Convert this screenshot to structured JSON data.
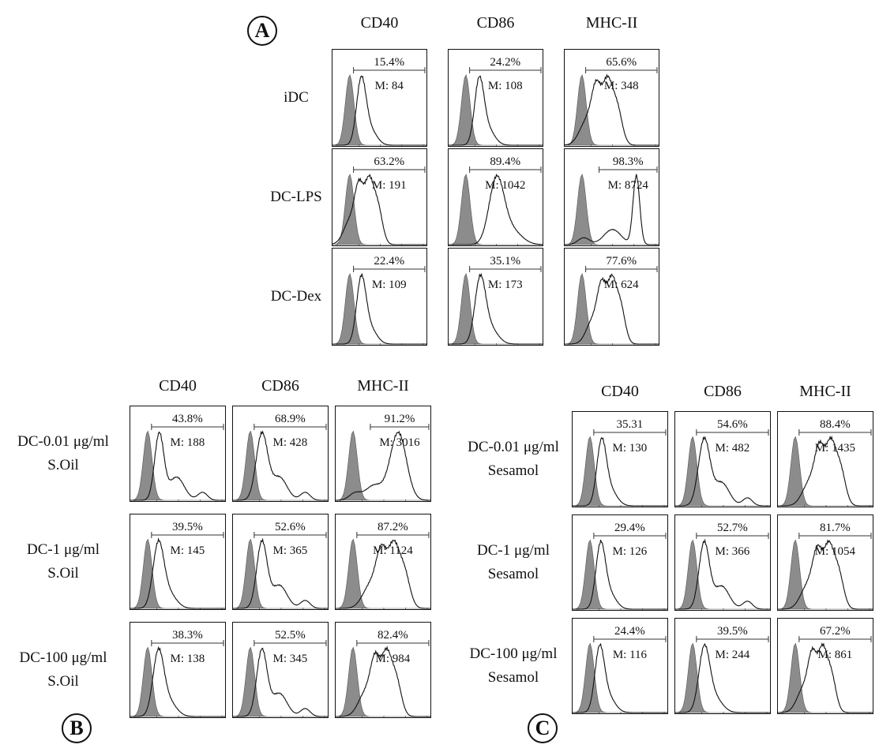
{
  "chart_data": [
    {
      "type": "histogram",
      "panel": "A",
      "columns": [
        "CD40",
        "CD86",
        "MHC-II"
      ],
      "rows": [
        {
          "label": [
            "iDC"
          ],
          "cells": [
            {
              "percent": "15.4%",
              "mfi": "M: 84",
              "peak": 0.3,
              "width": 0.07,
              "shape": "single"
            },
            {
              "percent": "24.2%",
              "mfi": "M: 108",
              "peak": 0.32,
              "width": 0.07,
              "shape": "single"
            },
            {
              "percent": "65.6%",
              "mfi": "M: 348",
              "peak": 0.4,
              "width": 0.11,
              "shape": "multi"
            }
          ]
        },
        {
          "label": [
            "DC-LPS"
          ],
          "cells": [
            {
              "percent": "63.2%",
              "mfi": "M: 191",
              "peak": 0.34,
              "width": 0.1,
              "shape": "multi"
            },
            {
              "percent": "89.4%",
              "mfi": "M: 1042",
              "peak": 0.5,
              "width": 0.11,
              "shape": "single"
            },
            {
              "percent": "98.3%",
              "mfi": "M: 8724",
              "peak": 0.75,
              "width": 0.05,
              "shape": "shoulder"
            }
          ]
        },
        {
          "label": [
            "DC-Dex"
          ],
          "cells": [
            {
              "percent": "22.4%",
              "mfi": "M: 109",
              "peak": 0.3,
              "width": 0.07,
              "shape": "single"
            },
            {
              "percent": "35.1%",
              "mfi": "M: 173",
              "peak": 0.33,
              "width": 0.08,
              "shape": "single"
            },
            {
              "percent": "77.6%",
              "mfi": "M: 624",
              "peak": 0.45,
              "width": 0.1,
              "shape": "multi"
            }
          ]
        }
      ]
    },
    {
      "type": "histogram",
      "panel": "B",
      "columns": [
        "CD40",
        "CD86",
        "MHC-II"
      ],
      "rows": [
        {
          "label": [
            "DC-0.01 μg/ml",
            "S.Oil"
          ],
          "cells": [
            {
              "percent": "43.8%",
              "mfi": "M: 188",
              "peak": 0.3,
              "width": 0.08,
              "shape": "tail"
            },
            {
              "percent": "68.9%",
              "mfi": "M: 428",
              "peak": 0.3,
              "width": 0.1,
              "shape": "tail"
            },
            {
              "percent": "91.2%",
              "mfi": "M: 3016",
              "peak": 0.65,
              "width": 0.12,
              "shape": "shoulder"
            }
          ]
        },
        {
          "label": [
            "DC-1 μg/ml",
            "S.Oil"
          ],
          "cells": [
            {
              "percent": "39.5%",
              "mfi": "M: 145",
              "peak": 0.29,
              "width": 0.08,
              "shape": "single"
            },
            {
              "percent": "52.6%",
              "mfi": "M: 365",
              "peak": 0.3,
              "width": 0.09,
              "shape": "tail"
            },
            {
              "percent": "87.2%",
              "mfi": "M: 1124",
              "peak": 0.55,
              "width": 0.12,
              "shape": "multi"
            }
          ]
        },
        {
          "label": [
            "DC-100 μg/ml",
            "S.Oil"
          ],
          "cells": [
            {
              "percent": "38.3%",
              "mfi": "M: 138",
              "peak": 0.29,
              "width": 0.08,
              "shape": "single"
            },
            {
              "percent": "52.5%",
              "mfi": "M: 345",
              "peak": 0.3,
              "width": 0.09,
              "shape": "tail"
            },
            {
              "percent": "82.4%",
              "mfi": "M: 984",
              "peak": 0.48,
              "width": 0.11,
              "shape": "multi"
            }
          ]
        }
      ]
    },
    {
      "type": "histogram",
      "panel": "C",
      "columns": [
        "CD40",
        "CD86",
        "MHC-II"
      ],
      "rows": [
        {
          "label": [
            "DC-0.01 μg/ml",
            "Sesamol"
          ],
          "cells": [
            {
              "percent": "35.31",
              "mfi": "M: 130",
              "peak": 0.3,
              "width": 0.07,
              "shape": "single"
            },
            {
              "percent": "54.6%",
              "mfi": "M: 482",
              "peak": 0.3,
              "width": 0.1,
              "shape": "tail"
            },
            {
              "percent": "88.4%",
              "mfi": "M: 1435",
              "peak": 0.5,
              "width": 0.11,
              "shape": "multi"
            }
          ]
        },
        {
          "label": [
            "DC-1 μg/ml",
            "Sesamol"
          ],
          "cells": [
            {
              "percent": "29.4%",
              "mfi": "M: 126",
              "peak": 0.29,
              "width": 0.07,
              "shape": "single"
            },
            {
              "percent": "52.7%",
              "mfi": "M: 366",
              "peak": 0.3,
              "width": 0.09,
              "shape": "tail"
            },
            {
              "percent": "81.7%",
              "mfi": "M: 1054",
              "peak": 0.48,
              "width": 0.11,
              "shape": "multi"
            }
          ]
        },
        {
          "label": [
            "DC-100 μg/ml",
            "Sesamol"
          ],
          "cells": [
            {
              "percent": "24.4%",
              "mfi": "M: 116",
              "peak": 0.28,
              "width": 0.07,
              "shape": "single"
            },
            {
              "percent": "39.5%",
              "mfi": "M: 244",
              "peak": 0.3,
              "width": 0.08,
              "shape": "single"
            },
            {
              "percent": "67.2%",
              "mfi": "M: 861",
              "peak": 0.42,
              "width": 0.1,
              "shape": "multi"
            }
          ]
        }
      ]
    }
  ],
  "colors": {
    "isotype_fill": "#8c8c8c",
    "outline": "#111111"
  }
}
